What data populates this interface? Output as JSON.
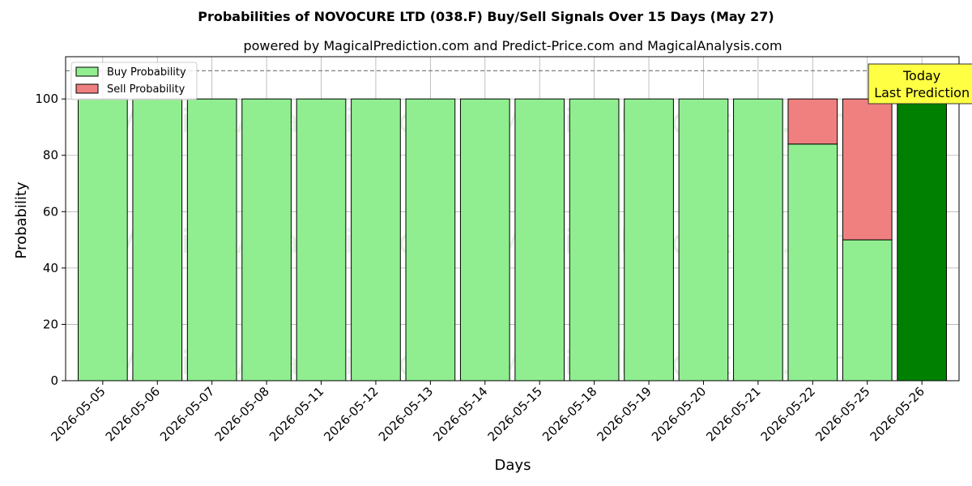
{
  "chart_data": {
    "type": "bar",
    "title": "Probabilities of NOVOCURE LTD (038.F) Buy/Sell Signals Over 15 Days (May 27)",
    "subtitle": "powered by MagicalPrediction.com and Predict-Price.com and MagicalAnalysis.com",
    "xlabel": "Days",
    "ylabel": "Probability",
    "ylim": [
      0,
      115
    ],
    "yticks": [
      0,
      20,
      40,
      60,
      80,
      100
    ],
    "reference_line": 110,
    "grid": true,
    "legend_position": "top-left",
    "categories": [
      "2026-05-05",
      "2026-05-06",
      "2026-05-07",
      "2026-05-08",
      "2026-05-11",
      "2026-05-12",
      "2026-05-13",
      "2026-05-14",
      "2026-05-15",
      "2026-05-18",
      "2026-05-19",
      "2026-05-20",
      "2026-05-21",
      "2026-05-22",
      "2026-05-25",
      "2026-05-26"
    ],
    "series": [
      {
        "name": "Buy Probability",
        "color": "#90ee90",
        "values": [
          100,
          100,
          100,
          100,
          100,
          100,
          100,
          100,
          100,
          100,
          100,
          100,
          100,
          84,
          50,
          100
        ]
      },
      {
        "name": "Sell Probability",
        "color": "#f08080",
        "values": [
          0,
          0,
          0,
          0,
          0,
          0,
          0,
          0,
          0,
          0,
          0,
          0,
          0,
          16,
          50,
          0
        ]
      }
    ],
    "highlight": {
      "index": 15,
      "color": "#008000"
    },
    "annotation": {
      "line1": "Today",
      "line2": "Last Prediction",
      "background": "#ffff44"
    },
    "watermarks": [
      "MagicalAnalysis.com",
      "MagicalPrediction.com"
    ]
  }
}
